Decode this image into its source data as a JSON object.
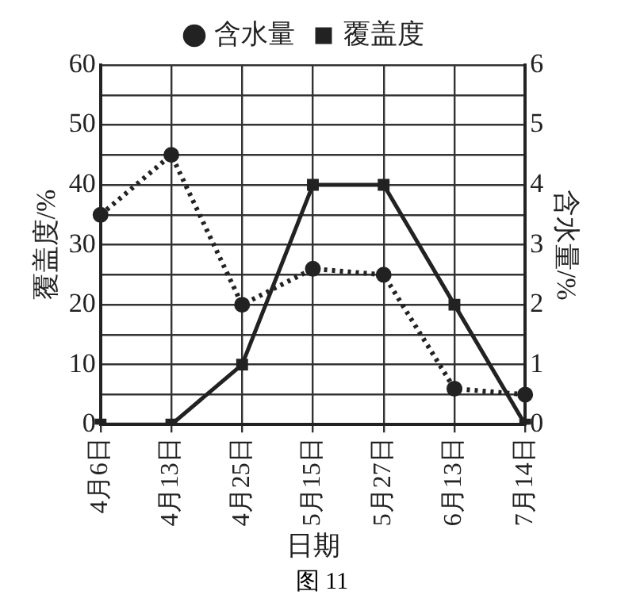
{
  "chart_data": {
    "type": "line",
    "xlabel": "日期",
    "ylabel": "覆盖度/%",
    "y2label": "含水量/%",
    "categories": [
      "4月6日",
      "4月13日",
      "4月25日",
      "5月15日",
      "5月27日",
      "6月13日",
      "7月14日"
    ],
    "series": [
      {
        "name": "含水量",
        "color": "#222222",
        "axis": "y2",
        "line_style": "dotted",
        "marker": "circle",
        "values": [
          3.5,
          4.5,
          2.0,
          2.6,
          2.5,
          0.6,
          0.5
        ]
      },
      {
        "name": "覆盖度",
        "color": "#222222",
        "line_style": "solid",
        "marker": "square",
        "values": [
          0,
          0,
          10,
          40,
          40,
          20,
          0
        ]
      }
    ],
    "ylim": [
      0,
      60
    ],
    "yticks": [
      0,
      {
        "value": 5,
        "label": null
      },
      10,
      {
        "value": 15,
        "label": null
      },
      20,
      {
        "value": 25,
        "label": null
      },
      30,
      {
        "value": 35,
        "label": null
      },
      40,
      {
        "value": 45,
        "label": null
      },
      50,
      {
        "value": 55,
        "label": null
      },
      60
    ],
    "y2lim": [
      0,
      6
    ],
    "y2ticks": [
      0,
      1,
      2,
      3,
      4,
      5,
      6
    ],
    "grid": true,
    "legend": "top",
    "annotations": [
      "图 11"
    ]
  }
}
